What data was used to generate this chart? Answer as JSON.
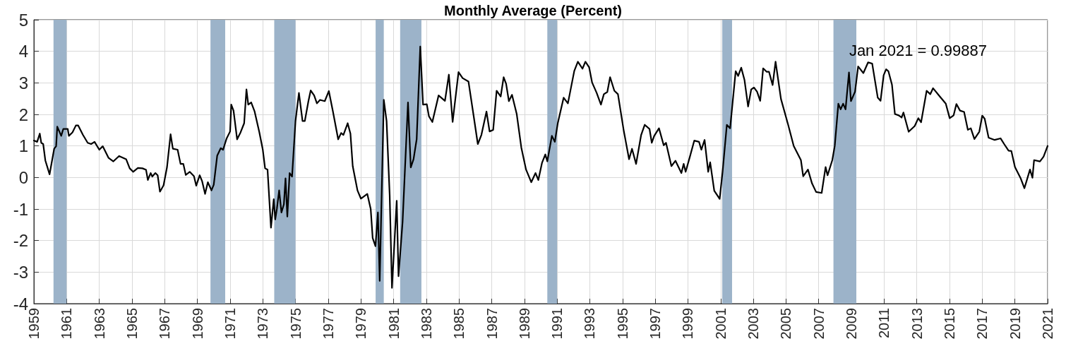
{
  "chart_data": {
    "type": "line",
    "title": "Monthly Average (Percent)",
    "x": [
      1959.0,
      1959.2,
      1959.36,
      1959.45,
      1959.57,
      1959.7,
      1959.96,
      1960.24,
      1960.36,
      1960.43,
      1960.67,
      1960.8,
      1961.07,
      1961.14,
      1961.36,
      1961.57,
      1961.71,
      1962.0,
      1962.29,
      1962.5,
      1962.71,
      1963.0,
      1963.21,
      1963.57,
      1963.86,
      1964.21,
      1964.64,
      1964.86,
      1965.07,
      1965.36,
      1965.64,
      1965.86,
      1965.97,
      1966.14,
      1966.24,
      1966.43,
      1966.57,
      1966.71,
      1966.93,
      1967.14,
      1967.36,
      1967.5,
      1967.79,
      1967.97,
      1968.14,
      1968.29,
      1968.53,
      1968.79,
      1968.93,
      1969.14,
      1969.29,
      1969.47,
      1969.64,
      1969.86,
      1970.0,
      1970.21,
      1970.43,
      1970.57,
      1970.79,
      1971.0,
      1971.07,
      1971.21,
      1971.29,
      1971.43,
      1971.64,
      1971.86,
      1972.0,
      1972.11,
      1972.29,
      1972.5,
      1972.79,
      1973.0,
      1973.14,
      1973.29,
      1973.5,
      1973.67,
      1973.76,
      1973.86,
      1974.0,
      1974.14,
      1974.29,
      1974.39,
      1974.5,
      1974.64,
      1974.79,
      1975.0,
      1975.21,
      1975.43,
      1975.57,
      1975.79,
      1975.93,
      1976.14,
      1976.31,
      1976.5,
      1976.79,
      1977.04,
      1977.29,
      1977.61,
      1977.79,
      1977.93,
      1978.19,
      1978.36,
      1978.5,
      1978.79,
      1979.0,
      1979.39,
      1979.6,
      1979.72,
      1979.89,
      1980.04,
      1980.15,
      1980.4,
      1980.57,
      1980.76,
      1980.9,
      1981.19,
      1981.3,
      1981.55,
      1981.88,
      1982.05,
      1982.22,
      1982.41,
      1982.63,
      1982.8,
      1983.03,
      1983.16,
      1983.37,
      1983.75,
      1984.14,
      1984.38,
      1984.61,
      1984.97,
      1985.22,
      1985.58,
      1985.91,
      1986.15,
      1986.37,
      1986.68,
      1986.87,
      1987.09,
      1987.3,
      1987.55,
      1987.73,
      1987.88,
      1988.05,
      1988.24,
      1988.53,
      1988.81,
      1989.1,
      1989.42,
      1989.68,
      1989.85,
      1990.08,
      1990.28,
      1990.4,
      1990.68,
      1990.86,
      1991.04,
      1991.4,
      1991.66,
      1992.05,
      1992.27,
      1992.55,
      1992.73,
      1992.96,
      1993.14,
      1993.42,
      1993.68,
      1993.86,
      1994.07,
      1994.24,
      1994.5,
      1994.72,
      1995.07,
      1995.4,
      1995.58,
      1995.83,
      1996.14,
      1996.36,
      1996.65,
      1996.79,
      1996.94,
      1997.23,
      1997.52,
      1997.66,
      1997.99,
      1998.24,
      1998.6,
      1998.74,
      1998.86,
      1999.1,
      1999.39,
      1999.68,
      1999.82,
      2000.02,
      2000.24,
      2000.36,
      2000.61,
      2000.94,
      2001.12,
      2001.38,
      2001.58,
      2001.92,
      2002.07,
      2002.26,
      2002.46,
      2002.68,
      2002.87,
      2003.04,
      2003.23,
      2003.42,
      2003.6,
      2003.82,
      2003.96,
      2004.18,
      2004.36,
      2004.69,
      2005.13,
      2005.47,
      2005.91,
      2006.05,
      2006.34,
      2006.59,
      2006.84,
      2007.18,
      2007.42,
      2007.54,
      2007.83,
      2007.98,
      2008.2,
      2008.34,
      2008.49,
      2008.64,
      2008.85,
      2008.97,
      2009.22,
      2009.41,
      2009.73,
      2010.02,
      2010.27,
      2010.61,
      2010.78,
      2010.97,
      2011.12,
      2011.26,
      2011.48,
      2011.66,
      2011.89,
      2012.07,
      2012.18,
      2012.5,
      2012.87,
      2013.09,
      2013.26,
      2013.6,
      2013.82,
      2013.99,
      2014.4,
      2014.77,
      2015.01,
      2015.25,
      2015.42,
      2015.64,
      2015.89,
      2016.12,
      2016.3,
      2016.52,
      2016.82,
      2017.0,
      2017.15,
      2017.39,
      2017.76,
      2018.12,
      2018.34,
      2018.61,
      2018.78,
      2019.0,
      2019.36,
      2019.58,
      2019.92,
      2020.07,
      2020.17,
      2020.53,
      2020.75,
      2021.0
    ],
    "series": [
      {
        "color": "#000000",
        "values": [
          1.17,
          1.13,
          1.39,
          1.1,
          1.06,
          0.54,
          0.1,
          0.91,
          0.99,
          1.61,
          1.32,
          1.54,
          1.54,
          1.32,
          1.43,
          1.65,
          1.65,
          1.35,
          1.1,
          1.06,
          1.13,
          0.88,
          0.99,
          0.62,
          0.51,
          0.68,
          0.58,
          0.29,
          0.18,
          0.3,
          0.29,
          0.24,
          -0.08,
          0.14,
          0.03,
          0.14,
          0.07,
          -0.45,
          -0.25,
          0.32,
          1.37,
          0.91,
          0.88,
          0.43,
          0.43,
          0.08,
          0.18,
          0.04,
          -0.26,
          0.07,
          -0.12,
          -0.52,
          -0.15,
          -0.41,
          -0.23,
          0.69,
          0.93,
          0.88,
          1.24,
          1.46,
          2.31,
          2.12,
          1.79,
          1.21,
          1.43,
          1.72,
          2.79,
          2.31,
          2.38,
          2.09,
          1.43,
          0.88,
          0.29,
          0.25,
          -1.59,
          -0.69,
          -1.33,
          -1.0,
          -0.41,
          -1.11,
          -0.85,
          -0.03,
          -1.24,
          0.14,
          0.03,
          1.79,
          2.68,
          1.79,
          1.79,
          2.42,
          2.76,
          2.6,
          2.35,
          2.46,
          2.42,
          2.74,
          2.09,
          1.21,
          1.41,
          1.35,
          1.72,
          1.39,
          0.36,
          -0.41,
          -0.67,
          -0.52,
          -1.0,
          -1.92,
          -2.18,
          -1.11,
          -3.28,
          2.46,
          1.79,
          -0.56,
          -3.5,
          -0.74,
          -3.13,
          -1.4,
          2.38,
          0.32,
          0.58,
          1.21,
          4.15,
          2.31,
          2.32,
          1.94,
          1.76,
          2.6,
          2.43,
          3.26,
          1.76,
          3.34,
          3.15,
          3.04,
          1.9,
          1.06,
          1.35,
          2.09,
          1.46,
          1.51,
          2.75,
          2.57,
          3.18,
          2.97,
          2.42,
          2.62,
          2.01,
          0.95,
          0.25,
          -0.15,
          0.14,
          -0.08,
          0.47,
          0.73,
          0.51,
          1.32,
          1.13,
          1.72,
          2.53,
          2.35,
          3.38,
          3.67,
          3.45,
          3.67,
          3.49,
          3.01,
          2.68,
          2.31,
          2.64,
          2.71,
          3.18,
          2.75,
          2.64,
          1.5,
          0.58,
          0.91,
          0.43,
          1.35,
          1.67,
          1.54,
          1.1,
          1.32,
          1.56,
          1.02,
          1.1,
          0.36,
          0.53,
          0.14,
          0.43,
          0.18,
          0.62,
          1.17,
          1.13,
          0.88,
          1.19,
          0.18,
          0.48,
          -0.42,
          -0.68,
          0.18,
          1.67,
          1.56,
          3.37,
          3.22,
          3.48,
          3.09,
          2.25,
          2.79,
          2.85,
          2.72,
          2.43,
          3.46,
          3.35,
          3.35,
          2.93,
          3.67,
          2.49,
          1.67,
          1.0,
          0.55,
          0.04,
          0.25,
          -0.19,
          -0.46,
          -0.49,
          0.33,
          0.07,
          0.55,
          1.0,
          2.34,
          2.16,
          2.34,
          2.16,
          3.33,
          2.42,
          2.72,
          3.52,
          3.31,
          3.65,
          3.61,
          2.53,
          2.43,
          3.24,
          3.43,
          3.37,
          2.94,
          2.01,
          1.97,
          1.9,
          2.06,
          1.45,
          1.63,
          1.88,
          1.75,
          2.75,
          2.64,
          2.83,
          2.57,
          2.34,
          1.88,
          1.97,
          2.33,
          2.12,
          2.08,
          1.51,
          1.56,
          1.22,
          1.45,
          1.96,
          1.86,
          1.26,
          1.19,
          1.24,
          1.06,
          0.85,
          0.84,
          0.33,
          -0.04,
          -0.34,
          0.25,
          -0.01,
          0.55,
          0.51,
          0.66,
          0.99887
        ]
      }
    ],
    "xlim": [
      1959,
      2021
    ],
    "xticks": [
      1959,
      1961,
      1963,
      1965,
      1967,
      1969,
      1971,
      1973,
      1975,
      1977,
      1979,
      1981,
      1983,
      1985,
      1987,
      1989,
      1991,
      1993,
      1995,
      1997,
      1999,
      2001,
      2003,
      2005,
      2007,
      2009,
      2011,
      2013,
      2015,
      2017,
      2019,
      2021
    ],
    "ylim": [
      -4,
      5
    ],
    "yticks": [
      -4,
      -3,
      -2,
      -1,
      0,
      1,
      2,
      3,
      4,
      5
    ],
    "bands": [
      {
        "axis": "x",
        "from": 1960.2,
        "to": 1961.0,
        "color": "#9cb3c9"
      },
      {
        "axis": "x",
        "from": 1969.8,
        "to": 1970.7,
        "color": "#9cb3c9"
      },
      {
        "axis": "x",
        "from": 1973.7,
        "to": 1975.0,
        "color": "#9cb3c9"
      },
      {
        "axis": "x",
        "from": 1979.9,
        "to": 1980.4,
        "color": "#9cb3c9"
      },
      {
        "axis": "x",
        "from": 1981.4,
        "to": 1982.7,
        "color": "#9cb3c9"
      },
      {
        "axis": "x",
        "from": 1990.4,
        "to": 1991.0,
        "color": "#9cb3c9"
      },
      {
        "axis": "x",
        "from": 2001.1,
        "to": 2001.7,
        "color": "#9cb3c9"
      },
      {
        "axis": "x",
        "from": 2007.9,
        "to": 2009.3,
        "color": "#9cb3c9"
      }
    ],
    "annotations": [
      "Jan 2021 = 0.99887"
    ],
    "grid": true,
    "line_style": "solid",
    "marker": "none"
  }
}
